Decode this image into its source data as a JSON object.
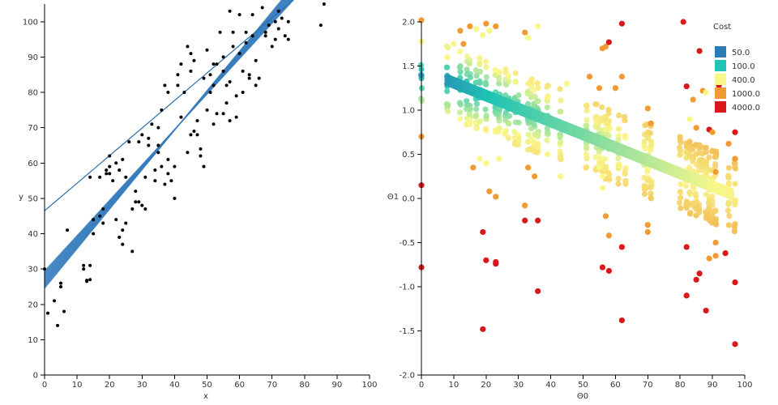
{
  "chart_data": [
    {
      "type": "scatter",
      "name": "data-scatter",
      "xlabel": "x",
      "ylabel": "y",
      "xlim": [
        0,
        100
      ],
      "ylim": [
        0,
        105
      ],
      "xticks": [
        "0",
        "10",
        "20",
        "30",
        "40",
        "50",
        "60",
        "70",
        "80",
        "90",
        "100"
      ],
      "yticks": [
        "0",
        "10",
        "20",
        "30",
        "40",
        "50",
        "60",
        "70",
        "80",
        "90",
        "100"
      ],
      "point_color": "#000000",
      "line_color": "#2a6ea8",
      "band_color": "#3b7fbf",
      "points": [
        [
          0,
          30
        ],
        [
          1,
          17.5
        ],
        [
          3,
          21
        ],
        [
          4,
          14
        ],
        [
          5,
          25
        ],
        [
          5,
          26
        ],
        [
          6,
          18
        ],
        [
          7,
          41
        ],
        [
          12,
          30
        ],
        [
          12,
          31
        ],
        [
          13,
          26.5
        ],
        [
          13,
          26.8
        ],
        [
          14,
          27
        ],
        [
          14,
          31
        ],
        [
          14,
          56
        ],
        [
          15,
          40
        ],
        [
          15,
          44
        ],
        [
          17,
          45
        ],
        [
          17,
          56
        ],
        [
          18,
          47
        ],
        [
          18,
          43
        ],
        [
          19,
          57
        ],
        [
          19,
          58
        ],
        [
          20,
          59
        ],
        [
          20,
          62
        ],
        [
          20,
          57
        ],
        [
          21,
          55
        ],
        [
          22,
          60
        ],
        [
          22,
          44
        ],
        [
          23,
          39
        ],
        [
          23,
          58
        ],
        [
          24,
          41
        ],
        [
          24,
          37
        ],
        [
          24,
          61
        ],
        [
          25,
          43
        ],
        [
          25,
          56
        ],
        [
          26,
          66
        ],
        [
          27,
          35
        ],
        [
          27,
          47
        ],
        [
          28,
          52
        ],
        [
          28,
          49
        ],
        [
          29,
          49
        ],
        [
          29,
          66
        ],
        [
          30,
          68
        ],
        [
          30,
          48
        ],
        [
          31,
          47
        ],
        [
          31,
          56
        ],
        [
          32,
          65
        ],
        [
          32,
          67
        ],
        [
          33,
          71
        ],
        [
          34,
          55
        ],
        [
          34,
          58
        ],
        [
          35,
          70
        ],
        [
          35,
          65
        ],
        [
          35,
          63
        ],
        [
          36,
          75
        ],
        [
          36,
          59
        ],
        [
          37,
          82
        ],
        [
          37,
          54
        ],
        [
          38,
          80
        ],
        [
          38,
          61
        ],
        [
          38,
          57
        ],
        [
          39,
          55
        ],
        [
          40,
          50
        ],
        [
          40,
          59
        ],
        [
          41,
          85
        ],
        [
          41,
          82
        ],
        [
          42,
          73
        ],
        [
          42,
          88
        ],
        [
          43,
          80
        ],
        [
          44,
          93
        ],
        [
          44,
          63
        ],
        [
          45,
          86
        ],
        [
          45,
          91
        ],
        [
          45,
          68
        ],
        [
          46,
          89
        ],
        [
          46,
          69
        ],
        [
          47,
          68
        ],
        [
          47,
          72
        ],
        [
          48,
          64
        ],
        [
          48,
          62
        ],
        [
          49,
          59
        ],
        [
          49,
          84
        ],
        [
          50,
          75
        ],
        [
          50,
          92
        ],
        [
          51,
          85
        ],
        [
          51,
          80
        ],
        [
          52,
          71
        ],
        [
          52,
          82
        ],
        [
          52,
          88
        ],
        [
          53,
          88
        ],
        [
          53,
          74
        ],
        [
          54,
          97
        ],
        [
          55,
          86
        ],
        [
          55,
          90
        ],
        [
          55,
          74
        ],
        [
          56,
          77
        ],
        [
          56,
          82
        ],
        [
          57,
          83
        ],
        [
          57,
          72
        ],
        [
          58,
          93
        ],
        [
          58,
          97
        ],
        [
          59,
          79
        ],
        [
          59,
          73
        ],
        [
          60,
          91
        ],
        [
          60,
          102
        ],
        [
          61,
          86
        ],
        [
          61,
          80
        ],
        [
          62,
          94
        ],
        [
          62,
          97
        ],
        [
          63,
          85
        ],
        [
          63,
          84
        ],
        [
          64,
          96
        ],
        [
          64,
          102
        ],
        [
          65,
          82
        ],
        [
          65,
          89
        ],
        [
          66,
          84
        ],
        [
          67,
          104
        ],
        [
          68,
          97
        ],
        [
          68,
          96
        ],
        [
          69,
          99
        ],
        [
          70,
          93
        ],
        [
          71,
          100
        ],
        [
          71,
          95
        ],
        [
          72,
          103
        ],
        [
          72,
          98
        ],
        [
          73,
          101
        ],
        [
          74,
          96
        ],
        [
          75,
          95
        ],
        [
          75,
          100
        ],
        [
          85,
          99
        ],
        [
          86,
          105
        ],
        [
          57,
          103
        ]
      ]
    },
    {
      "type": "scatter",
      "name": "parameter-scatter",
      "xlabel": "Θ0",
      "ylabel": "Θ1",
      "xlim": [
        0,
        100
      ],
      "ylim": [
        -2.0,
        2.0
      ],
      "xticks": [
        "0",
        "10",
        "20",
        "30",
        "40",
        "50",
        "60",
        "70",
        "80",
        "90",
        "100"
      ],
      "yticks": [
        "-2.0",
        "-1.5",
        "-1.0",
        "-0.5",
        "0.0",
        "0.5",
        "1.0",
        "1.5",
        "2.0"
      ],
      "legend": {
        "title": "Cost",
        "position": "top-right",
        "items": [
          {
            "label": "50.0",
            "color": "#2c7bb6"
          },
          {
            "label": "100.0",
            "color": "#1fc4b4"
          },
          {
            "label": "400.0",
            "color": "#f7f78a"
          },
          {
            "label": "1000.0",
            "color": "#f09a34"
          },
          {
            "label": "4000.0",
            "color": "#d7191c"
          }
        ]
      },
      "gradient_stops": [
        {
          "cost": 0,
          "color": "#2c7bb6"
        },
        {
          "cost": 100,
          "color": "#1fc4b4"
        },
        {
          "cost": 400,
          "color": "#f7f78a"
        },
        {
          "cost": 1000,
          "color": "#f09a34"
        },
        {
          "cost": 4000,
          "color": "#d7191c"
        }
      ],
      "main_trail": {
        "theta0_start": 8,
        "theta0_end": 96,
        "theta1_start": 1.34,
        "theta1_end": 0.05,
        "cost_start": 40,
        "cost_end": 420
      },
      "columns": [
        0,
        8,
        12,
        14,
        15,
        17,
        18,
        20,
        23,
        24,
        26,
        27,
        29,
        30,
        33,
        34,
        35,
        36,
        39,
        43,
        51,
        54,
        55,
        56,
        57,
        58,
        61,
        63,
        69,
        70,
        71,
        80,
        82,
        83,
        84,
        85,
        86,
        87,
        88,
        89,
        90,
        91,
        95,
        97
      ],
      "outliers": [
        [
          0,
          2.02,
          1000
        ],
        [
          0,
          0.7,
          1000
        ],
        [
          0,
          0.15,
          4000
        ],
        [
          0,
          -0.78,
          4000
        ],
        [
          0,
          1.78,
          400
        ],
        [
          8,
          1.6,
          400
        ],
        [
          10,
          1.75,
          400
        ],
        [
          12,
          1.9,
          1000
        ],
        [
          13,
          1.75,
          1000
        ],
        [
          15,
          1.95,
          1000
        ],
        [
          17,
          1.92,
          400
        ],
        [
          19,
          1.85,
          400
        ],
        [
          20,
          1.98,
          1000
        ],
        [
          21,
          1.9,
          400
        ],
        [
          23,
          1.95,
          1000
        ],
        [
          16,
          0.35,
          1000
        ],
        [
          18,
          0.45,
          400
        ],
        [
          20,
          0.4,
          400
        ],
        [
          21,
          0.08,
          1000
        ],
        [
          23,
          0.02,
          1000
        ],
        [
          19,
          -0.38,
          4000
        ],
        [
          20,
          -0.7,
          4000
        ],
        [
          23,
          -0.74,
          4000
        ],
        [
          23,
          -0.72,
          4000
        ],
        [
          19,
          -1.48,
          4000
        ],
        [
          24,
          0.45,
          400
        ],
        [
          32,
          1.88,
          1000
        ],
        [
          33,
          1.82,
          400
        ],
        [
          36,
          1.95,
          400
        ],
        [
          33,
          0.35,
          1000
        ],
        [
          35,
          0.25,
          1000
        ],
        [
          32,
          -0.08,
          1000
        ],
        [
          32,
          -0.25,
          4000
        ],
        [
          36,
          -0.25,
          4000
        ],
        [
          36,
          -1.05,
          4000
        ],
        [
          43,
          0.25,
          400
        ],
        [
          39,
          0.5,
          400
        ],
        [
          45,
          1.3,
          400
        ],
        [
          52,
          1.38,
          1000
        ],
        [
          55,
          1.25,
          1000
        ],
        [
          56,
          1.7,
          1000
        ],
        [
          57,
          1.72,
          1000
        ],
        [
          58,
          1.77,
          4000
        ],
        [
          60,
          1.25,
          1000
        ],
        [
          62,
          1.38,
          1000
        ],
        [
          62,
          1.98,
          4000
        ],
        [
          55,
          0.35,
          400
        ],
        [
          56,
          0.25,
          400
        ],
        [
          56,
          0.12,
          400
        ],
        [
          57,
          -0.2,
          1000
        ],
        [
          58,
          -0.42,
          1000
        ],
        [
          56,
          -0.78,
          4000
        ],
        [
          58,
          -0.82,
          4000
        ],
        [
          62,
          -0.55,
          4000
        ],
        [
          62,
          -1.38,
          4000
        ],
        [
          70,
          1.02,
          1000
        ],
        [
          71,
          0.85,
          1000
        ],
        [
          70,
          -0.3,
          1000
        ],
        [
          70,
          -0.38,
          1000
        ],
        [
          81,
          2.0,
          4000
        ],
        [
          82,
          1.27,
          4000
        ],
        [
          86,
          1.67,
          4000
        ],
        [
          84,
          1.12,
          1000
        ],
        [
          87,
          1.22,
          1000
        ],
        [
          89,
          0.78,
          4000
        ],
        [
          90,
          0.75,
          1000
        ],
        [
          88,
          1.2,
          400
        ],
        [
          92,
          1.28,
          4000
        ],
        [
          97,
          0.75,
          4000
        ],
        [
          97,
          0.45,
          1000
        ],
        [
          86,
          -0.85,
          4000
        ],
        [
          82,
          -0.55,
          4000
        ],
        [
          88,
          -1.27,
          4000
        ],
        [
          97,
          -0.95,
          4000
        ],
        [
          97,
          -1.65,
          4000
        ],
        [
          82,
          -1.1,
          4000
        ],
        [
          85,
          -0.92,
          4000
        ],
        [
          89,
          -0.68,
          1000
        ],
        [
          91,
          -0.5,
          1000
        ],
        [
          94,
          -0.62,
          4000
        ],
        [
          85,
          0.8,
          1000
        ],
        [
          83,
          0.9,
          400
        ],
        [
          91,
          0.3,
          1000
        ],
        [
          95,
          0.62,
          1000
        ],
        [
          91,
          -0.65,
          1000
        ]
      ]
    }
  ]
}
